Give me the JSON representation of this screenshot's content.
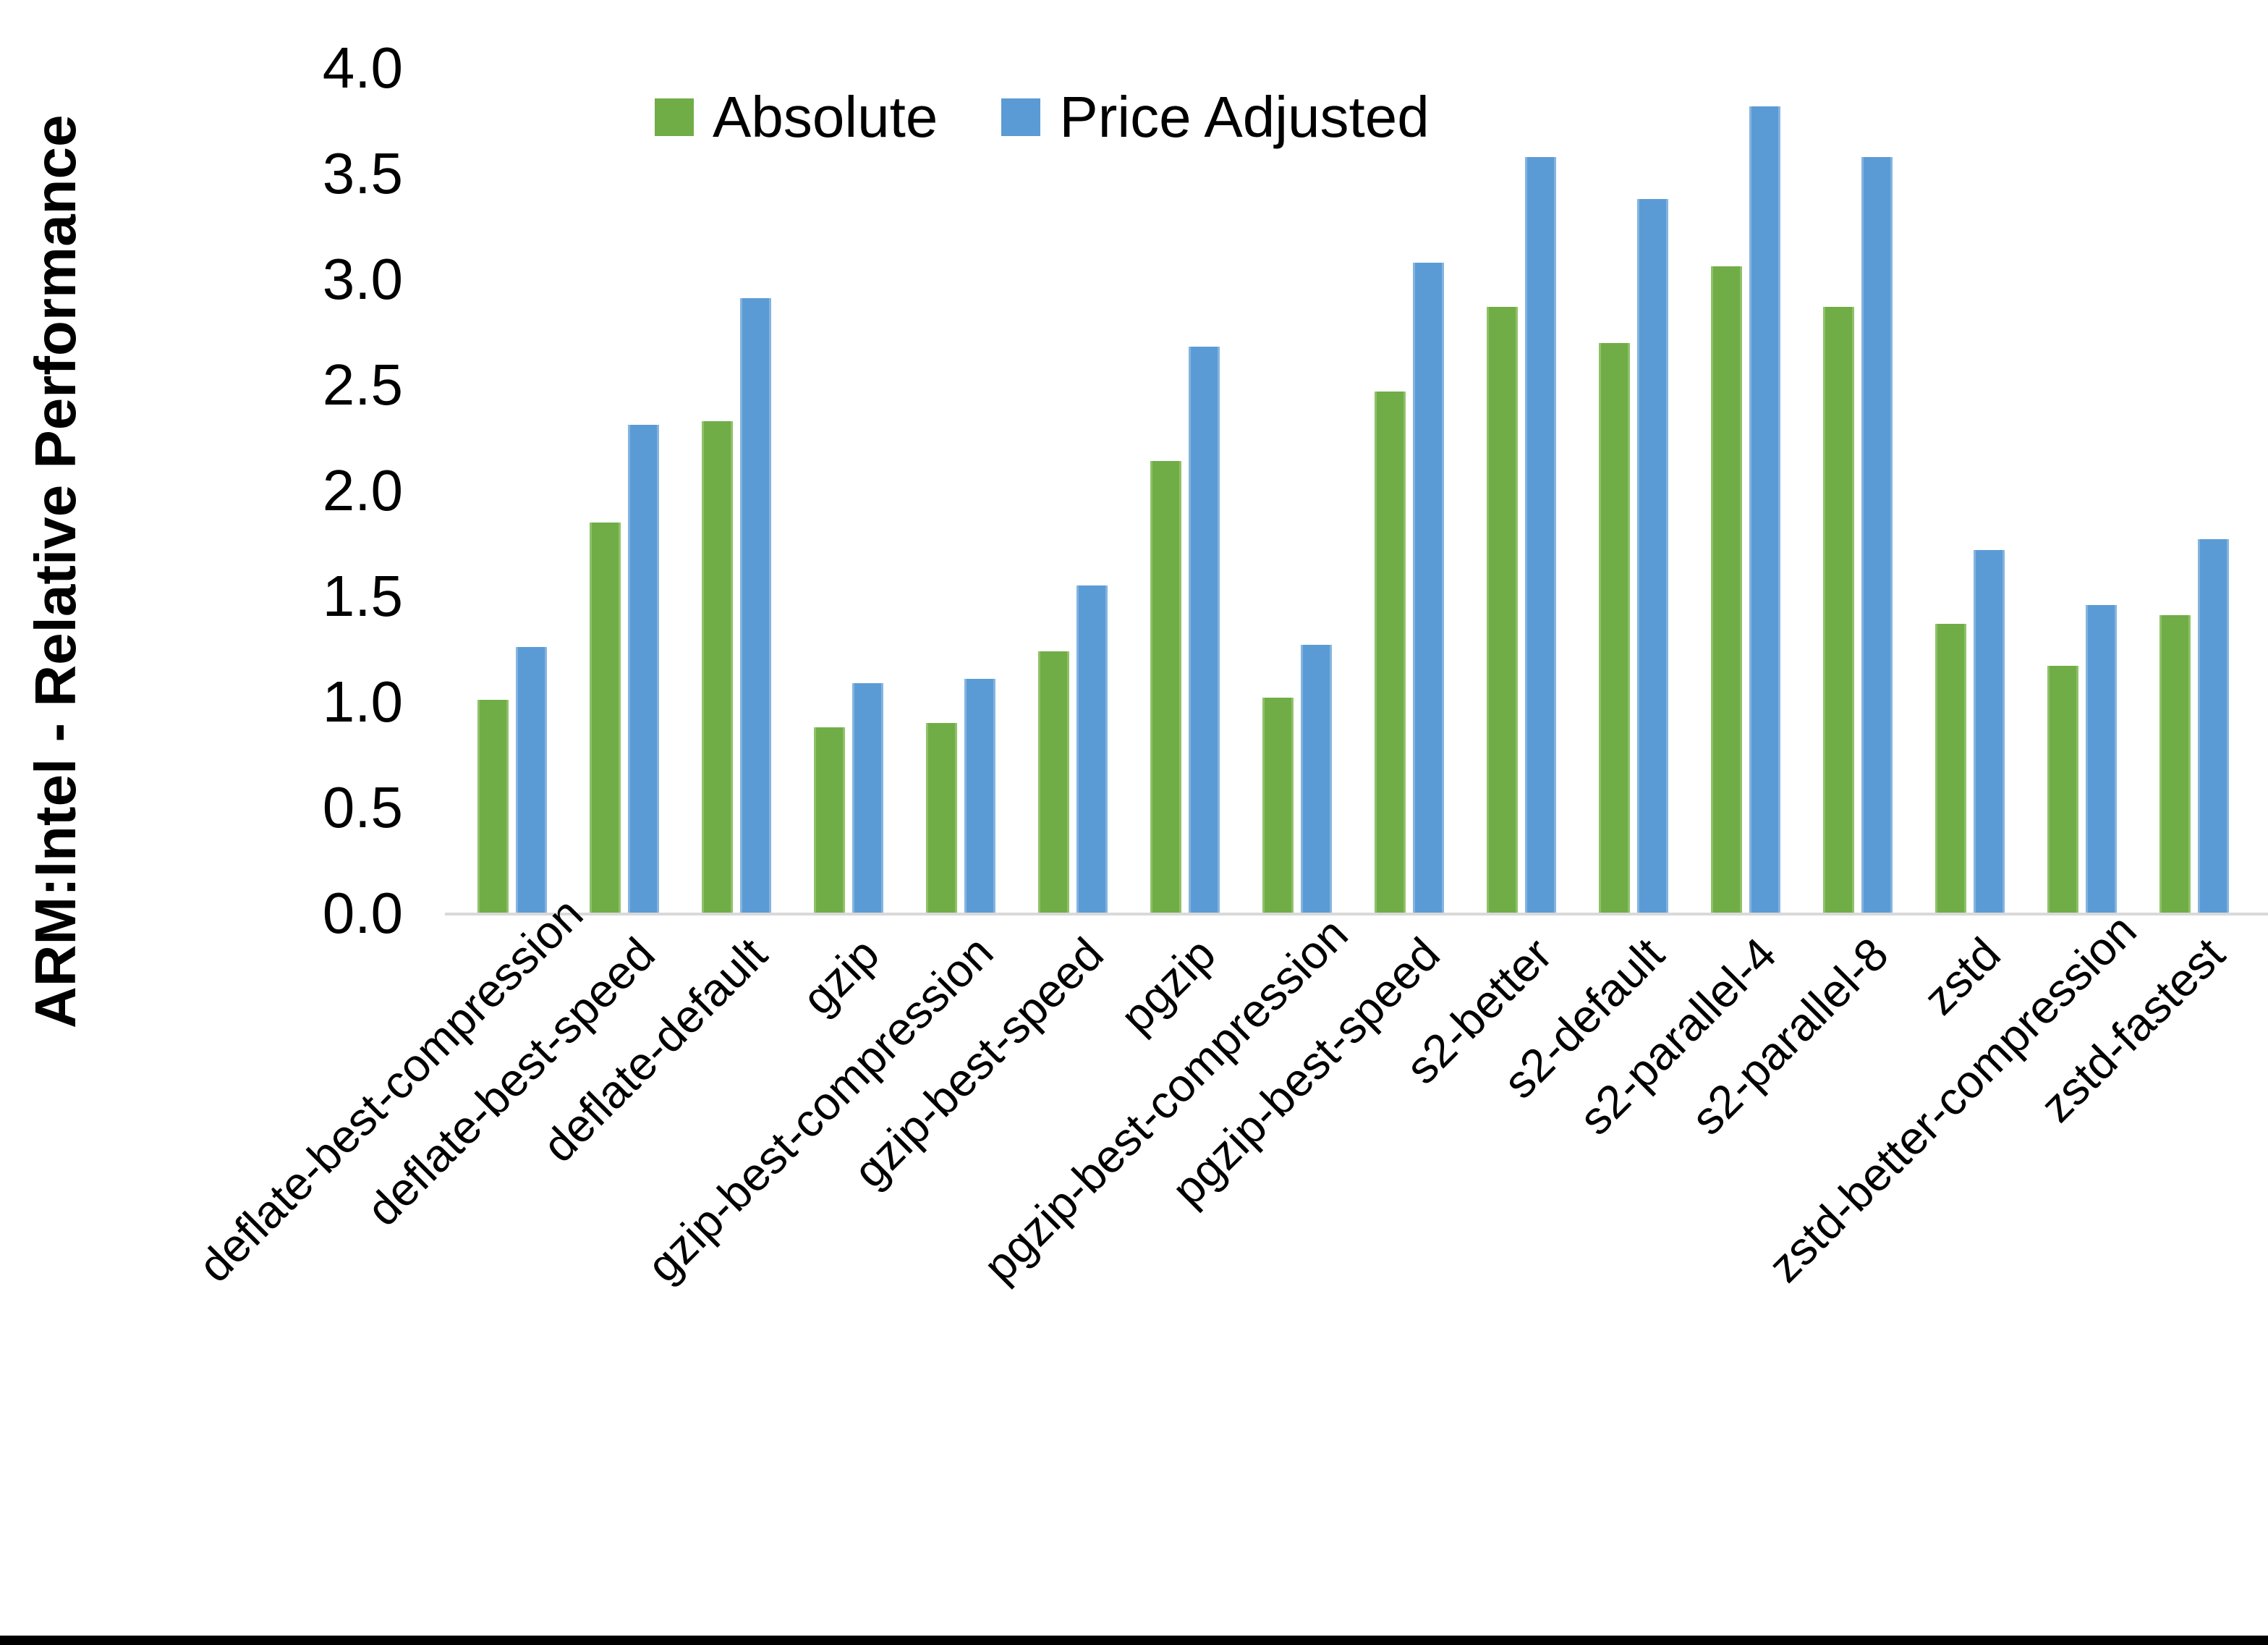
{
  "chart_data": {
    "type": "bar",
    "title": "",
    "ylabel": "ARM:Intel - Relative Performance",
    "xlabel": "",
    "ylim": [
      0.0,
      4.0
    ],
    "y_tick_step": 0.5,
    "y_ticks": [
      "0.0",
      "0.5",
      "1.0",
      "1.5",
      "2.0",
      "2.5",
      "3.0",
      "3.5",
      "4.0"
    ],
    "grid": "off",
    "legend_position": "top-center",
    "categories": [
      "deflate-best-compression",
      "deflate-best-speed",
      "deflate-default",
      "gzip",
      "gzip-best-compression",
      "gzip-best-speed",
      "pgzip",
      "pgzip-best-compression",
      "pgzip-best-speed",
      "s2-better",
      "s2-default",
      "s2-parallel-4",
      "s2-parallel-8",
      "zstd",
      "zstd-better-compression",
      "zstd-fastest"
    ],
    "series": [
      {
        "name": "Absolute",
        "color": "#70AD47",
        "edge_color": "#8fc169",
        "values": [
          1.01,
          1.85,
          2.33,
          0.88,
          0.9,
          1.24,
          2.14,
          1.02,
          2.47,
          2.87,
          2.7,
          3.06,
          2.87,
          1.37,
          1.17,
          1.41
        ]
      },
      {
        "name": "Price Adjusted",
        "color": "#5B9BD5",
        "edge_color": "#84b4e0",
        "values": [
          1.26,
          2.31,
          2.91,
          1.09,
          1.11,
          1.55,
          2.68,
          1.27,
          3.08,
          3.58,
          3.38,
          3.82,
          3.58,
          1.72,
          1.46,
          1.77
        ]
      }
    ],
    "axis_line_color": "#d9d9d9",
    "background": "#ffffff",
    "bottom_border_color": "#000000"
  }
}
